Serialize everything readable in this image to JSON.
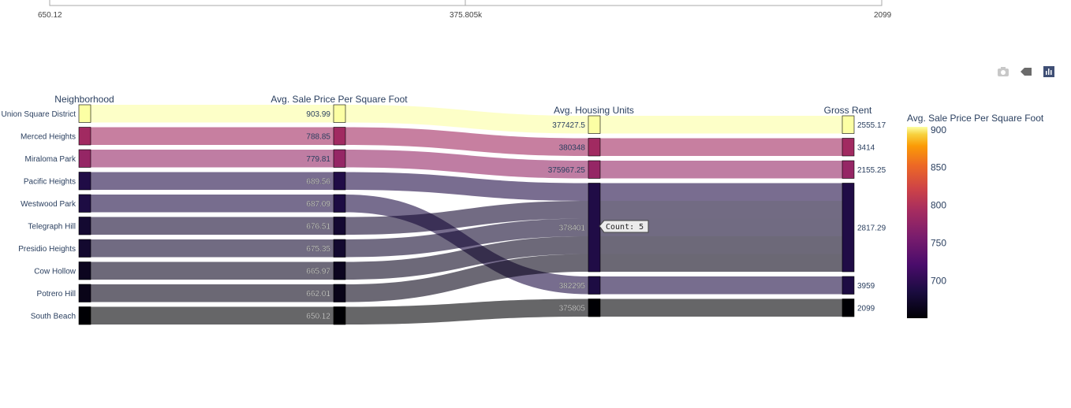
{
  "top_axis": {
    "ticks": [
      "650.12",
      "375.805k",
      "2099"
    ]
  },
  "modebar": {
    "icons": [
      "camera-icon",
      "home-reset-icon",
      "plotly-logo-icon"
    ]
  },
  "chart_data": {
    "type": "parallel_categories",
    "dimensions": [
      {
        "label": "Neighborhood",
        "categories": [
          "Union Square District",
          "Merced Heights",
          "Miraloma Park",
          "Pacific Heights",
          "Westwood Park",
          "Telegraph Hill",
          "Presidio Heights",
          "Cow Hollow",
          "Potrero Hill",
          "South Beach"
        ]
      },
      {
        "label": "Avg. Sale Price Per Square Foot",
        "categories": [
          "903.99",
          "788.85",
          "779.81",
          "689.56",
          "687.09",
          "676.51",
          "675.35",
          "665.97",
          "662.01",
          "650.12"
        ]
      },
      {
        "label": "Avg. Housing Units",
        "categories": [
          "377427.5",
          "380348",
          "375967.25",
          "378401",
          "382295",
          "375805"
        ]
      },
      {
        "label": "Gross Rent",
        "categories": [
          "2555.17",
          "3414",
          "2155.25",
          "2817.29",
          "3959",
          "2099"
        ]
      }
    ],
    "records": [
      {
        "neighborhood": "Union Square District",
        "price": 903.99,
        "units": "377427.5",
        "rent": "2555.17"
      },
      {
        "neighborhood": "Merced Heights",
        "price": 788.85,
        "units": "380348",
        "rent": "3414"
      },
      {
        "neighborhood": "Miraloma Park",
        "price": 779.81,
        "units": "375967.25",
        "rent": "2155.25"
      },
      {
        "neighborhood": "Pacific Heights",
        "price": 689.56,
        "units": "378401",
        "rent": "2817.29"
      },
      {
        "neighborhood": "Westwood Park",
        "price": 687.09,
        "units": "382295",
        "rent": "3959"
      },
      {
        "neighborhood": "Telegraph Hill",
        "price": 676.51,
        "units": "378401",
        "rent": "2817.29"
      },
      {
        "neighborhood": "Presidio Heights",
        "price": 675.35,
        "units": "378401",
        "rent": "2817.29"
      },
      {
        "neighborhood": "Cow Hollow",
        "price": 665.97,
        "units": "378401",
        "rent": "2817.29"
      },
      {
        "neighborhood": "Potrero Hill",
        "price": 662.01,
        "units": "378401",
        "rent": "2817.29"
      },
      {
        "neighborhood": "South Beach",
        "price": 650.12,
        "units": "375805",
        "rent": "2099"
      }
    ],
    "colorbar": {
      "title": "Avg. Sale Price Per Square Foot",
      "range": [
        650.12,
        903.99
      ],
      "ticks": [
        700,
        750,
        800,
        850,
        900
      ],
      "colorscale": "inferno"
    },
    "hover": {
      "label": "Count: 5",
      "category": "378401"
    }
  }
}
